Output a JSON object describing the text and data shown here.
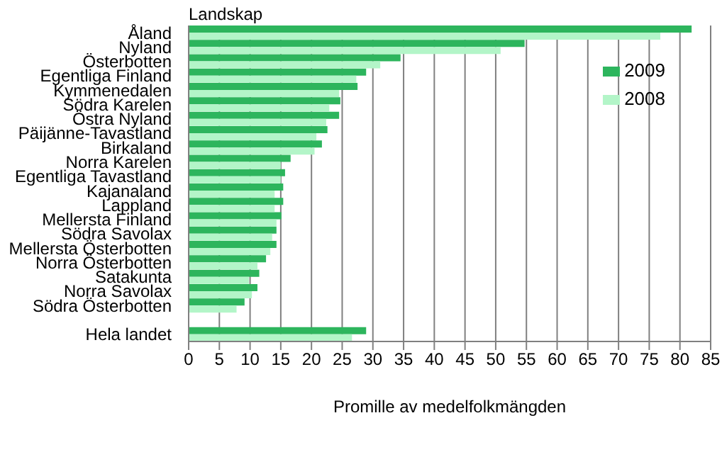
{
  "chart_data": {
    "type": "bar",
    "orientation": "horizontal",
    "ylabel": "Landskap",
    "xlabel": "Promille av medelfolkmängden",
    "categories": [
      "Åland",
      "Nyland",
      "Österbotten",
      "Egentliga Finland",
      "Kymmenedalen",
      "Södra Karelen",
      "Östra Nyland",
      "Päijänne-Tavastland",
      "Birkaland",
      "Norra Karelen",
      "Egentliga Tavastland",
      "Kajanaland",
      "Lappland",
      "Mellersta Finland",
      "Södra Savolax",
      "Mellersta Österbotten",
      "Norra Österbotten",
      "Satakunta",
      "Norra Savolax",
      "Södra Österbotten",
      null,
      "Hela landet"
    ],
    "series": [
      {
        "name": "2009",
        "color": "#2db55d",
        "values": [
          81.9,
          54.7,
          34.5,
          28.9,
          27.5,
          24.7,
          24.5,
          22.6,
          21.7,
          16.6,
          15.7,
          15.4,
          15.4,
          15.1,
          14.3,
          14.3,
          12.6,
          11.5,
          11.2,
          9.1,
          null,
          28.9
        ]
      },
      {
        "name": "2008",
        "color": "#b3f5c8",
        "values": [
          76.8,
          50.8,
          31.2,
          27.3,
          24.5,
          22.9,
          22.4,
          20.8,
          20.5,
          15.0,
          15.0,
          14.0,
          14.0,
          14.3,
          13.6,
          13.3,
          11.2,
          9.8,
          10.3,
          7.8,
          null,
          26.6
        ]
      }
    ],
    "xlim": [
      0,
      85
    ],
    "xticks": [
      0,
      5,
      10,
      15,
      20,
      25,
      30,
      35,
      40,
      45,
      50,
      55,
      60,
      65,
      70,
      75,
      80,
      85
    ],
    "grid": "x",
    "legend": "top right"
  }
}
